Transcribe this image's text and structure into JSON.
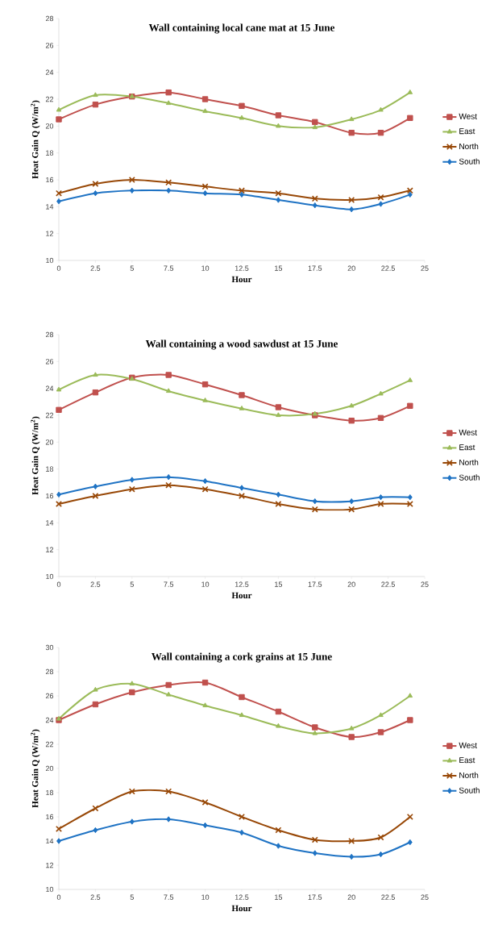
{
  "chart_data": [
    {
      "type": "line",
      "title": "Wall containing local cane mat at 15 June",
      "xlabel": "Hour",
      "ylabel": "Heat Gain  Q  (W/m$^{2}$)",
      "x": [
        0,
        2.5,
        5,
        7.5,
        10,
        12.5,
        15,
        17.5,
        20,
        22,
        24
      ],
      "xlim": [
        0,
        25
      ],
      "xticks": [
        0,
        2.5,
        5,
        7.5,
        10,
        12.5,
        15,
        17.5,
        20,
        22.5,
        25
      ],
      "ylim": [
        10,
        28
      ],
      "yticks": [
        10,
        12,
        14,
        16,
        18,
        20,
        22,
        24,
        26,
        28
      ],
      "legend": "right",
      "series": [
        {
          "name": "West",
          "color": "#c0504d",
          "marker": "square",
          "values": [
            20.5,
            21.6,
            22.2,
            22.5,
            22.0,
            21.5,
            20.8,
            20.3,
            19.5,
            19.5,
            20.6
          ]
        },
        {
          "name": "East",
          "color": "#9bbb59",
          "marker": "triangle",
          "values": [
            21.2,
            22.3,
            22.2,
            21.7,
            21.1,
            20.6,
            20.0,
            19.9,
            20.5,
            21.2,
            22.5
          ]
        },
        {
          "name": "North",
          "color": "#984807",
          "marker": "cross",
          "values": [
            15.0,
            15.7,
            16.0,
            15.8,
            15.5,
            15.2,
            15.0,
            14.6,
            14.5,
            14.7,
            15.2
          ]
        },
        {
          "name": "South",
          "color": "#1f73c4",
          "marker": "diamond",
          "values": [
            14.4,
            15.0,
            15.2,
            15.2,
            15.0,
            14.9,
            14.5,
            14.1,
            13.8,
            14.2,
            14.9
          ]
        }
      ]
    },
    {
      "type": "line",
      "title": "Wall containing a wood sawdust at 15 June",
      "xlabel": "Hour",
      "ylabel": "Heat Gain  Q  (W/m$^{2}$)",
      "x": [
        0,
        2.5,
        5,
        7.5,
        10,
        12.5,
        15,
        17.5,
        20,
        22,
        24
      ],
      "xlim": [
        0,
        25
      ],
      "xticks": [
        0,
        2.5,
        5,
        7.5,
        10,
        12.5,
        15,
        17.5,
        20,
        22.5,
        25
      ],
      "ylim": [
        10,
        28
      ],
      "yticks": [
        10,
        12,
        14,
        16,
        18,
        20,
        22,
        24,
        26,
        28
      ],
      "legend": "right",
      "series": [
        {
          "name": "West",
          "color": "#c0504d",
          "marker": "square",
          "values": [
            22.4,
            23.7,
            24.8,
            25.0,
            24.3,
            23.5,
            22.6,
            22.0,
            21.6,
            21.8,
            22.7
          ]
        },
        {
          "name": "East",
          "color": "#9bbb59",
          "marker": "triangle",
          "values": [
            23.9,
            25.0,
            24.7,
            23.8,
            23.1,
            22.5,
            22.0,
            22.1,
            22.7,
            23.6,
            24.6
          ]
        },
        {
          "name": "North",
          "color": "#984807",
          "marker": "cross",
          "values": [
            15.4,
            16.0,
            16.5,
            16.8,
            16.5,
            16.0,
            15.4,
            15.0,
            15.0,
            15.4,
            15.4
          ]
        },
        {
          "name": "South",
          "color": "#1f73c4",
          "marker": "diamond",
          "values": [
            16.1,
            16.7,
            17.2,
            17.4,
            17.1,
            16.6,
            16.1,
            15.6,
            15.6,
            15.9,
            15.9
          ]
        }
      ]
    },
    {
      "type": "line",
      "title": "Wall containing a cork grains at 15 June",
      "xlabel": "Hour",
      "ylabel": "Heat Gain  Q  (W/m$^{2}$)",
      "x": [
        0,
        2.5,
        5,
        7.5,
        10,
        12.5,
        15,
        17.5,
        20,
        22,
        24
      ],
      "xlim": [
        0,
        25
      ],
      "xticks": [
        0,
        2.5,
        5,
        7.5,
        10,
        12.5,
        15,
        17.5,
        20,
        22.5,
        25
      ],
      "ylim": [
        10,
        30
      ],
      "yticks": [
        10,
        12,
        14,
        16,
        18,
        20,
        22,
        24,
        26,
        28,
        30
      ],
      "legend": "right",
      "series": [
        {
          "name": "West",
          "color": "#c0504d",
          "marker": "square",
          "values": [
            24.0,
            25.3,
            26.3,
            26.9,
            27.1,
            25.9,
            24.7,
            23.4,
            22.6,
            23.0,
            24.0
          ]
        },
        {
          "name": "East",
          "color": "#9bbb59",
          "marker": "triangle",
          "values": [
            24.1,
            26.5,
            27.0,
            26.1,
            25.2,
            24.4,
            23.5,
            22.9,
            23.3,
            24.4,
            26.0
          ]
        },
        {
          "name": "North",
          "color": "#984807",
          "marker": "cross",
          "values": [
            15.0,
            16.7,
            18.1,
            18.1,
            17.2,
            16.0,
            14.9,
            14.1,
            14.0,
            14.3,
            16.0
          ]
        },
        {
          "name": "South",
          "color": "#1f73c4",
          "marker": "diamond",
          "values": [
            14.0,
            14.9,
            15.6,
            15.8,
            15.3,
            14.7,
            13.6,
            13.0,
            12.7,
            12.9,
            13.9
          ]
        }
      ]
    }
  ]
}
